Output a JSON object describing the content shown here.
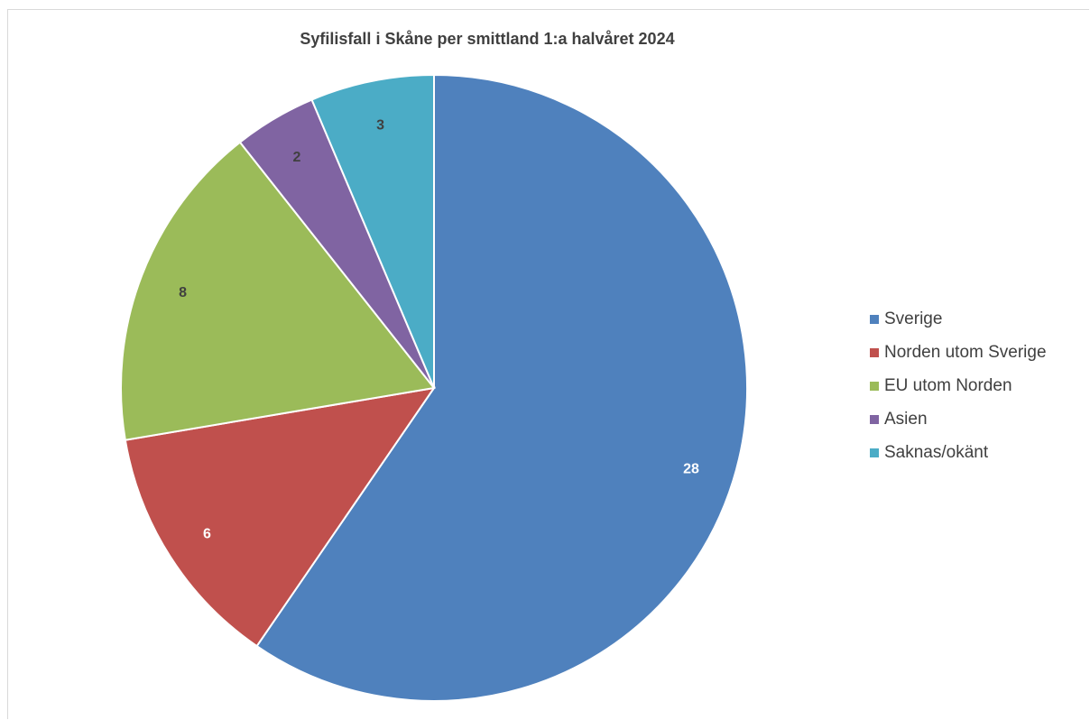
{
  "chart_data": {
    "type": "pie",
    "title": "Syfilisfall i Skåne per smittland 1:a halvåret 2024",
    "categories": [
      "Sverige",
      "Norden utom Sverige",
      "EU utom Norden",
      "Asien",
      "Saknas/okänt"
    ],
    "values": [
      28,
      6,
      8,
      2,
      3
    ],
    "colors": [
      "#4f81bd",
      "#c0504d",
      "#9bbb59",
      "#8064a2",
      "#4bacc6"
    ],
    "label_colors": [
      "#ffffff",
      "#ffffff",
      "#404040",
      "#404040",
      "#404040"
    ],
    "legend_position": "right",
    "start": "top, clockwise"
  }
}
